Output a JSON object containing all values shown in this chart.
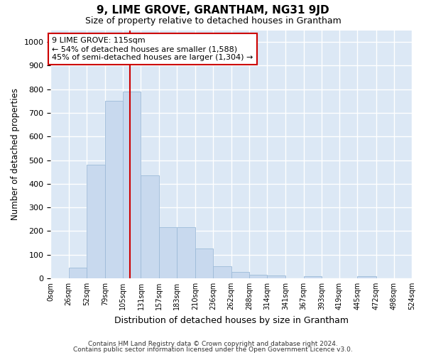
{
  "title": "9, LIME GROVE, GRANTHAM, NG31 9JD",
  "subtitle": "Size of property relative to detached houses in Grantham",
  "xlabel": "Distribution of detached houses by size in Grantham",
  "ylabel": "Number of detached properties",
  "bar_color": "#c8d9ee",
  "bar_edge_color": "#9dbbd9",
  "background_color": "#dce8f5",
  "grid_color": "#ffffff",
  "tick_labels": [
    "0sqm",
    "26sqm",
    "52sqm",
    "79sqm",
    "105sqm",
    "131sqm",
    "157sqm",
    "183sqm",
    "210sqm",
    "236sqm",
    "262sqm",
    "288sqm",
    "314sqm",
    "341sqm",
    "367sqm",
    "393sqm",
    "419sqm",
    "445sqm",
    "472sqm",
    "498sqm",
    "524sqm"
  ],
  "bin_edges": [
    0,
    26,
    52,
    79,
    105,
    131,
    157,
    183,
    210,
    236,
    262,
    288,
    314,
    341,
    367,
    393,
    419,
    445,
    472,
    498,
    524
  ],
  "values": [
    0,
    45,
    480,
    750,
    790,
    435,
    215,
    215,
    125,
    50,
    28,
    15,
    12,
    0,
    8,
    0,
    0,
    8,
    0,
    0
  ],
  "property_size": 115,
  "property_label": "9 LIME GROVE: 115sqm",
  "annotation_line1": "← 54% of detached houses are smaller (1,588)",
  "annotation_line2": "45% of semi-detached houses are larger (1,304) →",
  "vline_color": "#cc0000",
  "annotation_box_facecolor": "#ffffff",
  "annotation_box_edgecolor": "#cc0000",
  "ylim": [
    0,
    1050
  ],
  "yticks": [
    0,
    100,
    200,
    300,
    400,
    500,
    600,
    700,
    800,
    900,
    1000
  ],
  "footer1": "Contains HM Land Registry data © Crown copyright and database right 2024.",
  "footer2": "Contains public sector information licensed under the Open Government Licence v3.0."
}
